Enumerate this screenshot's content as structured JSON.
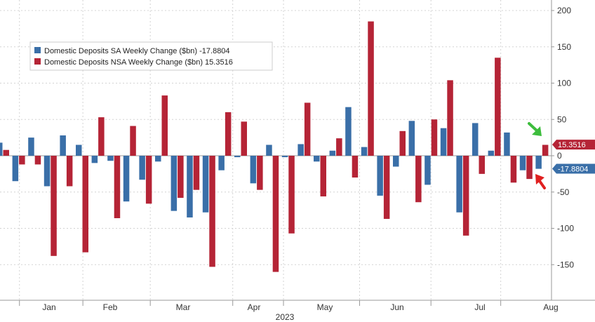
{
  "chart_data": {
    "type": "bar",
    "title": "",
    "xlabel": "2023",
    "ylabel": "",
    "ylim": [
      -190,
      210
    ],
    "y_ticks": [
      -150,
      -100,
      -50,
      0,
      50,
      100,
      150,
      200
    ],
    "y_axis_position": "right",
    "grid": true,
    "legend_position": "top-left",
    "months": [
      {
        "label": "Jan",
        "week": 3
      },
      {
        "label": "Feb",
        "week": 7
      },
      {
        "label": "Mar",
        "week": 12
      },
      {
        "label": "Apr",
        "week": 16
      },
      {
        "label": "May",
        "week": 20.5
      },
      {
        "label": "Jun",
        "week": 25
      },
      {
        "label": "Jul",
        "week": 29.5
      },
      {
        "label": "Aug",
        "week": 34
      }
    ],
    "year_label": "2023",
    "series": [
      {
        "name": "Domestic Deposits SA Weekly Change ($bn)",
        "last_value": "-17.8804",
        "color": "#3a6fa8",
        "values": [
          18,
          -35,
          25,
          -42,
          28,
          15,
          -10,
          -7,
          -63,
          -33,
          -8,
          -76,
          -85,
          -78,
          -20,
          -2,
          -38,
          15,
          -2,
          16,
          -8,
          7,
          67,
          12,
          -55,
          -15,
          48,
          -40,
          38,
          -78,
          45,
          7,
          32,
          -20,
          -18
        ]
      },
      {
        "name": "Domestic Deposits NSA Weekly Change ($bn)",
        "last_value": "15.3516",
        "color": "#b52436",
        "values": [
          8,
          -12,
          -12,
          -138,
          -42,
          -133,
          53,
          -86,
          41,
          -66,
          83,
          -58,
          -47,
          -153,
          60,
          47,
          -47,
          -160,
          -107,
          73,
          -56,
          24,
          -30,
          185,
          -87,
          34,
          -64,
          50,
          104,
          -110,
          -25,
          135,
          -37,
          -32,
          15
        ]
      }
    ],
    "value_flags": [
      {
        "text": "15.3516",
        "value": 15.3516,
        "color": "#b52436"
      },
      {
        "text": "-17.8804",
        "value": -17.8804,
        "color": "#3a6fa8"
      }
    ],
    "annotations": [
      {
        "type": "arrow",
        "color": "#3dbd3d",
        "points_to": "NSA last bar"
      },
      {
        "type": "arrow",
        "color": "#e02020",
        "points_to": "SA last bar"
      }
    ]
  }
}
